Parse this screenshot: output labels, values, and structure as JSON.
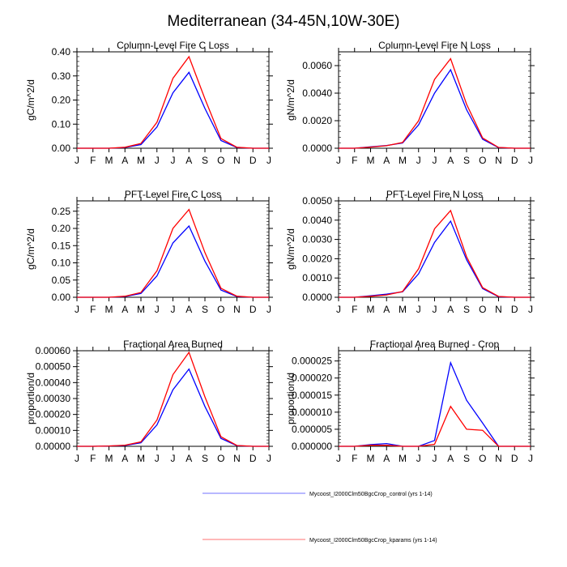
{
  "chart_data": {
    "title": "Mediterranean (34-45N,10W-30E)",
    "months": [
      "J",
      "F",
      "M",
      "A",
      "M",
      "J",
      "J",
      "A",
      "S",
      "O",
      "N",
      "D",
      "J"
    ],
    "series_styles": [
      {
        "name": "Mycoost_I2000Clm50BgcCrop_control (yrs 1-14)",
        "color": "#0000ff"
      },
      {
        "name": "Mycoost_I2000Clm50BgcCrop_kparams (yrs 1-14)",
        "color": "#ff0000"
      }
    ],
    "panels": [
      {
        "type": "line",
        "title": "Column-Level Fire C Loss",
        "ylabel": "gC/m^2/d",
        "ylim": [
          0,
          0.4
        ],
        "yticks": [
          0,
          0.1,
          0.2,
          0.3,
          0.4
        ],
        "yticklabels": [
          "0.00",
          "0.10",
          "0.20",
          "0.30",
          "0.40"
        ],
        "ylabel_side": "left",
        "series": [
          {
            "name": "control",
            "values": [
              0,
              0,
              0,
              0.003,
              0.015,
              0.088,
              0.23,
              0.315,
              0.165,
              0.032,
              0.003,
              0,
              0
            ]
          },
          {
            "name": "kparams",
            "values": [
              0,
              0,
              0,
              0.004,
              0.02,
              0.108,
              0.29,
              0.38,
              0.205,
              0.04,
              0.004,
              0,
              0
            ]
          }
        ]
      },
      {
        "type": "line",
        "title": "Column-Level Fire N Loss",
        "ylabel": "gN/m^2/d",
        "ylim": [
          0,
          0.007
        ],
        "yticks": [
          0,
          0.002,
          0.004,
          0.006
        ],
        "yticklabels": [
          "0.0000",
          "0.0020",
          "0.0040",
          "0.0060"
        ],
        "ylabel_side": "left",
        "series": [
          {
            "name": "control",
            "values": [
              0,
              0,
              0.0001,
              0.0002,
              0.00038,
              0.0017,
              0.004,
              0.0057,
              0.0028,
              0.00065,
              5e-05,
              0,
              0
            ]
          },
          {
            "name": "kparams",
            "values": [
              0,
              0,
              8e-05,
              0.00018,
              0.00042,
              0.002,
              0.005,
              0.0065,
              0.0032,
              0.00075,
              6e-05,
              0,
              0
            ]
          }
        ]
      },
      {
        "type": "line",
        "title": "PFT-Level Fire C Loss",
        "ylabel": "gC/m^2/d",
        "ylim": [
          0,
          0.28
        ],
        "yticks": [
          0,
          0.05,
          0.1,
          0.15,
          0.2,
          0.25
        ],
        "yticklabels": [
          "0.00",
          "0.05",
          "0.10",
          "0.15",
          "0.20",
          "0.25"
        ],
        "ylabel_side": "left",
        "series": [
          {
            "name": "control",
            "values": [
              0,
              0,
              0,
              0.002,
              0.011,
              0.062,
              0.158,
              0.207,
              0.105,
              0.021,
              0.002,
              0,
              0
            ]
          },
          {
            "name": "kparams",
            "values": [
              0,
              0,
              0,
              0.003,
              0.014,
              0.077,
              0.2,
              0.255,
              0.13,
              0.026,
              0.003,
              0,
              0
            ]
          }
        ]
      },
      {
        "type": "line",
        "title": "PFT-Level Fire N Loss",
        "ylabel": "gN/m^2/d",
        "ylim": [
          0,
          0.005
        ],
        "yticks": [
          0,
          0.001,
          0.002,
          0.003,
          0.004,
          0.005
        ],
        "yticklabels": [
          "0.0000",
          "0.0010",
          "0.0020",
          "0.0030",
          "0.0040",
          "0.0050"
        ],
        "ylabel_side": "left",
        "series": [
          {
            "name": "control",
            "values": [
              0,
              0,
              8e-05,
              0.00016,
              0.00028,
              0.00122,
              0.00285,
              0.00395,
              0.00195,
              0.00045,
              3e-05,
              0,
              0
            ]
          },
          {
            "name": "kparams",
            "values": [
              0,
              0,
              5e-05,
              0.00012,
              0.0003,
              0.00148,
              0.00355,
              0.0045,
              0.0021,
              0.0005,
              4e-05,
              0,
              0
            ]
          }
        ]
      },
      {
        "type": "line",
        "title": "Fractional Area Burned",
        "ylabel": "proportion/d",
        "ylim": [
          0,
          0.0006
        ],
        "yticks": [
          0,
          0.0001,
          0.0002,
          0.0003,
          0.0004,
          0.0005,
          0.0006
        ],
        "yticklabels": [
          "0.00000",
          "0.00010",
          "0.00020",
          "0.00030",
          "0.00040",
          "0.00050",
          "0.00060"
        ],
        "ylabel_side": "left",
        "series": [
          {
            "name": "control",
            "values": [
              0,
              0,
              2e-06,
              5e-06,
              2.2e-05,
              0.000135,
              0.000355,
              0.000485,
              0.00025,
              5e-05,
              4e-06,
              0,
              0
            ]
          },
          {
            "name": "kparams",
            "values": [
              0,
              0,
              2e-06,
              7e-06,
              2.8e-05,
              0.000165,
              0.00045,
              0.00059,
              0.00031,
              6e-05,
              5e-06,
              0,
              0
            ]
          }
        ]
      },
      {
        "type": "line",
        "title": "Fractional Area Burned - Crop",
        "ylabel": "proportion/d",
        "ylim": [
          0,
          2.8e-05
        ],
        "yticks": [
          0,
          5e-06,
          1e-05,
          1.5e-05,
          2e-05,
          2.5e-05
        ],
        "yticklabels": [
          "0.000000",
          "0.000005",
          "0.000010",
          "0.000015",
          "0.000020",
          "0.000025"
        ],
        "ylabel_side": "left",
        "series": [
          {
            "name": "control",
            "values": [
              0,
              0,
              5e-07,
              8e-07,
              0,
              0,
              1.7e-06,
              2.45e-05,
              1.35e-05,
              6.8e-06,
              0,
              0,
              0
            ]
          },
          {
            "name": "kparams",
            "values": [
              0,
              0,
              3e-07,
              3e-07,
              0,
              0,
              6e-07,
              1.17e-05,
              5e-06,
              4.7e-06,
              0,
              0,
              0
            ]
          }
        ]
      }
    ],
    "legend": {
      "placement": "bottom-center",
      "entries": [
        {
          "label": "Mycoost_I2000Clm50BgcCrop_control (yrs 1-14)",
          "color": "#0000ff"
        },
        {
          "label": "Mycoost_I2000Clm50BgcCrop_kparams (yrs 1-14)",
          "color": "#ff0000"
        }
      ]
    }
  }
}
